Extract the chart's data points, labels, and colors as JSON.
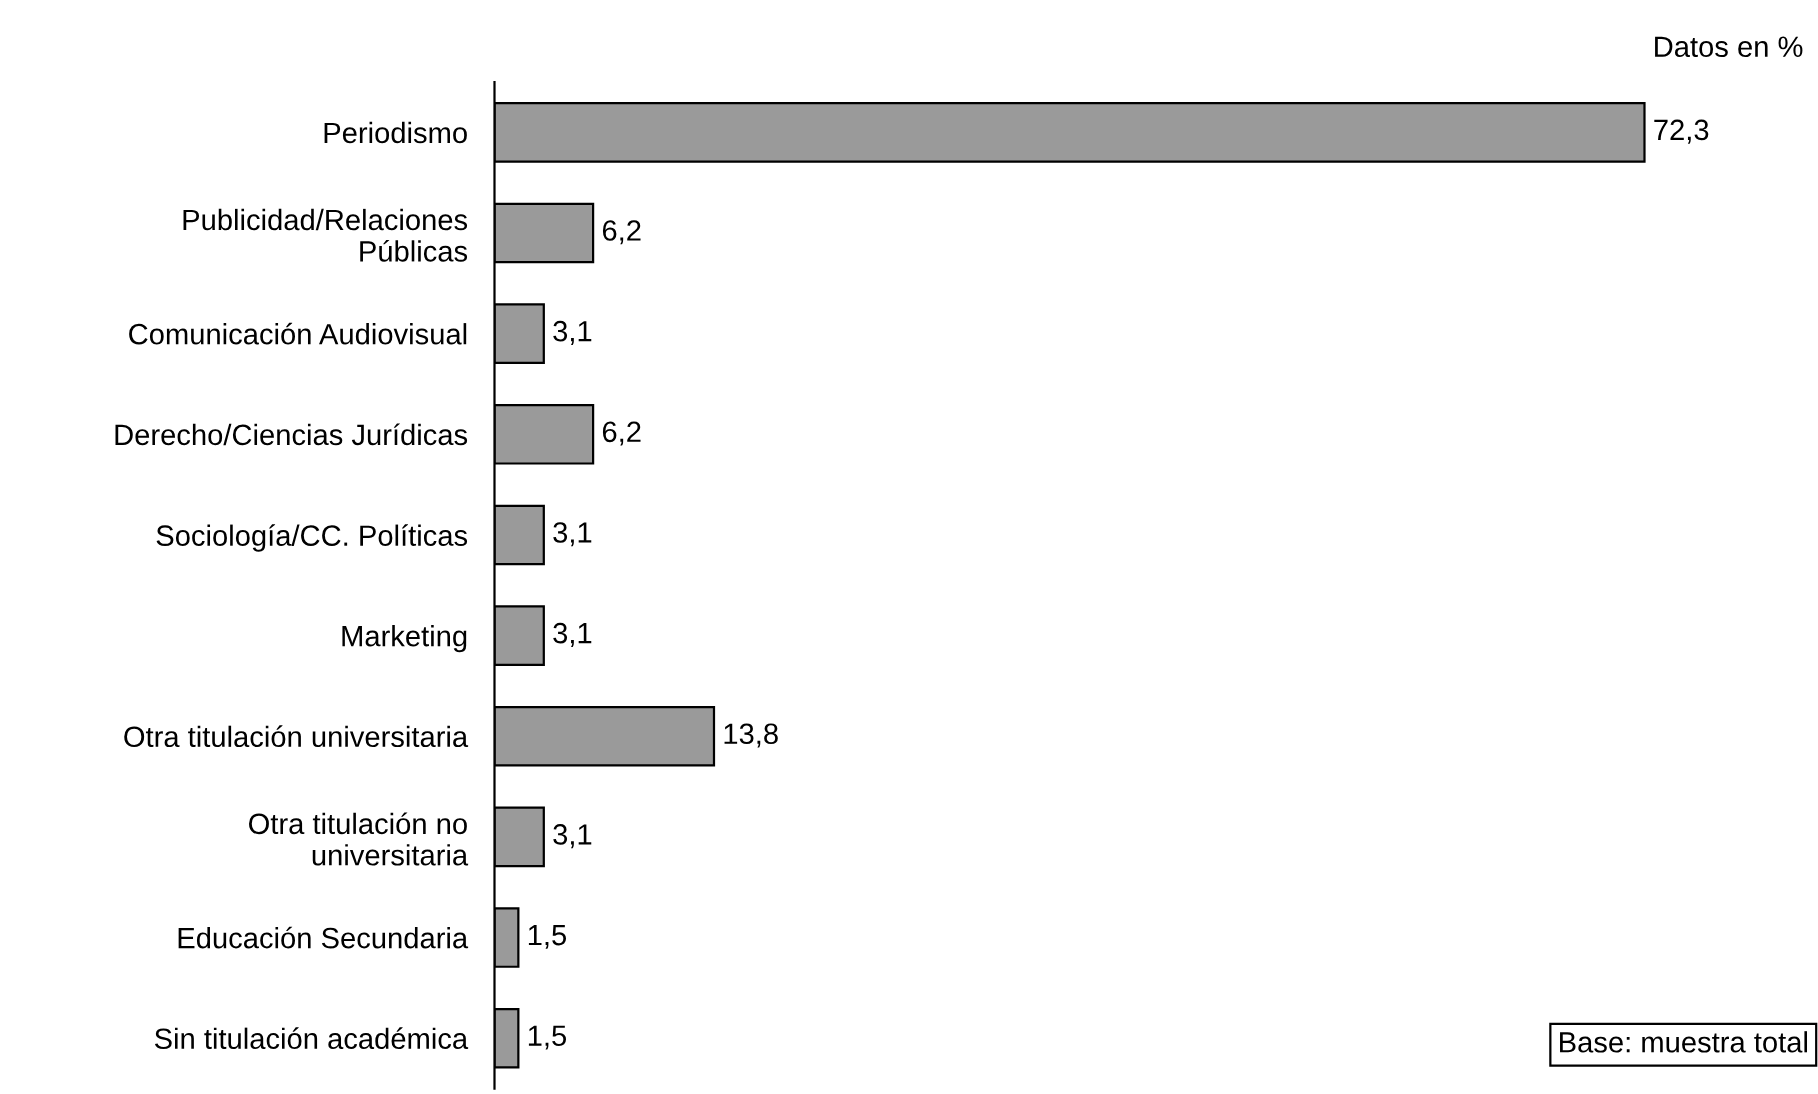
{
  "chart_data": {
    "type": "bar",
    "orientation": "horizontal",
    "categories": [
      "Periodismo",
      "Publicidad/Relaciones\nPúblicas",
      "Comunicación Audiovisual",
      "Derecho/Ciencias Jurídicas",
      "Sociología/CC. Políticas",
      "Marketing",
      "Otra titulación universitaria",
      "Otra titulación no\nuniversitaria",
      "Educación Secundaria",
      "Sin titulación académica"
    ],
    "values": [
      72.3,
      6.2,
      3.1,
      6.2,
      3.1,
      3.1,
      13.8,
      3.1,
      1.5,
      1.5
    ],
    "value_labels": [
      "72,3",
      "6,2",
      "3,1",
      "6,2",
      "3,1",
      "3,1",
      "13,8",
      "3,1",
      "1,5",
      "1,5"
    ],
    "color": "#9a9a9a",
    "tick_labels": "y",
    "grid": false,
    "legend": false,
    "annotations": [
      "Datos en %",
      "Base: muestra total"
    ]
  }
}
